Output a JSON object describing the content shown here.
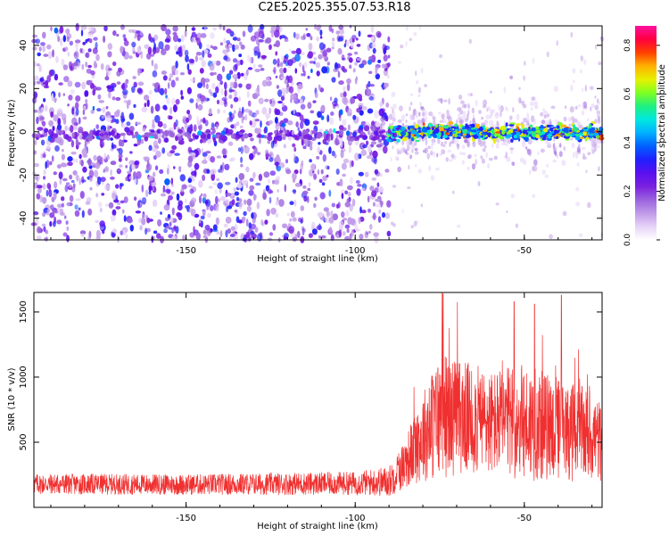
{
  "title": "C2E5.2025.355.07.53.R18",
  "colors": {
    "snr_line": "#f03030",
    "axis": "#000000",
    "colormap": [
      "#ffffff",
      "#e6d2f7",
      "#c09ae8",
      "#9a62de",
      "#7a20e0",
      "#5a10f0",
      "#2020ff",
      "#0060ff",
      "#00b0ff",
      "#00e8e0",
      "#20f080",
      "#80ff20",
      "#e8f000",
      "#ffb000",
      "#ff4000",
      "#ff0040",
      "#ff10a0"
    ]
  },
  "chart_data": [
    {
      "type": "heatmap",
      "title": "C2E5.2025.355.07.53.R18",
      "xlabel": "Height of straight line (km)",
      "ylabel": "Frequency (Hz)",
      "xlim": [
        -195,
        -27
      ],
      "ylim": [
        -50,
        49
      ],
      "xticks": [
        "-150",
        "-100",
        "-50"
      ],
      "yticks": [
        "-40",
        "-20",
        "0",
        "20",
        "40"
      ],
      "colorbar": {
        "label": "Normalized spectral amplitude",
        "range": [
          0.0,
          0.88
        ],
        "ticks": [
          "0.0",
          "0.2",
          "0.4",
          "0.6",
          "0.8"
        ]
      },
      "description_values": {
        "noise_band_end_km": -90,
        "signal_center_hz": 0,
        "signal_start_km": -90
      }
    },
    {
      "type": "line",
      "xlabel": "Height of straight line (km)",
      "ylabel": "SNR (10 * v/v)",
      "xlim": [
        -195,
        -27
      ],
      "ylim": [
        0,
        1650
      ],
      "xticks": [
        "-150",
        "-100",
        "-50"
      ],
      "yticks": [
        "500",
        "1000",
        "1500"
      ],
      "series": [
        {
          "name": "SNR",
          "envelope_x": [
            -195,
            -150,
            -100,
            -90,
            -85,
            -80,
            -75,
            -70,
            -60,
            -50,
            -40,
            -30,
            -27
          ],
          "envelope_mean": [
            180,
            175,
            185,
            200,
            350,
            550,
            700,
            700,
            650,
            650,
            600,
            550,
            500
          ],
          "envelope_spread": [
            80,
            80,
            90,
            120,
            200,
            350,
            500,
            450,
            400,
            450,
            400,
            350,
            300
          ],
          "peaks": [
            {
              "x": -74,
              "y": 1640
            },
            {
              "x": -39,
              "y": 1630
            },
            {
              "x": -53,
              "y": 1580
            },
            {
              "x": -47,
              "y": 1560
            }
          ]
        }
      ]
    }
  ]
}
